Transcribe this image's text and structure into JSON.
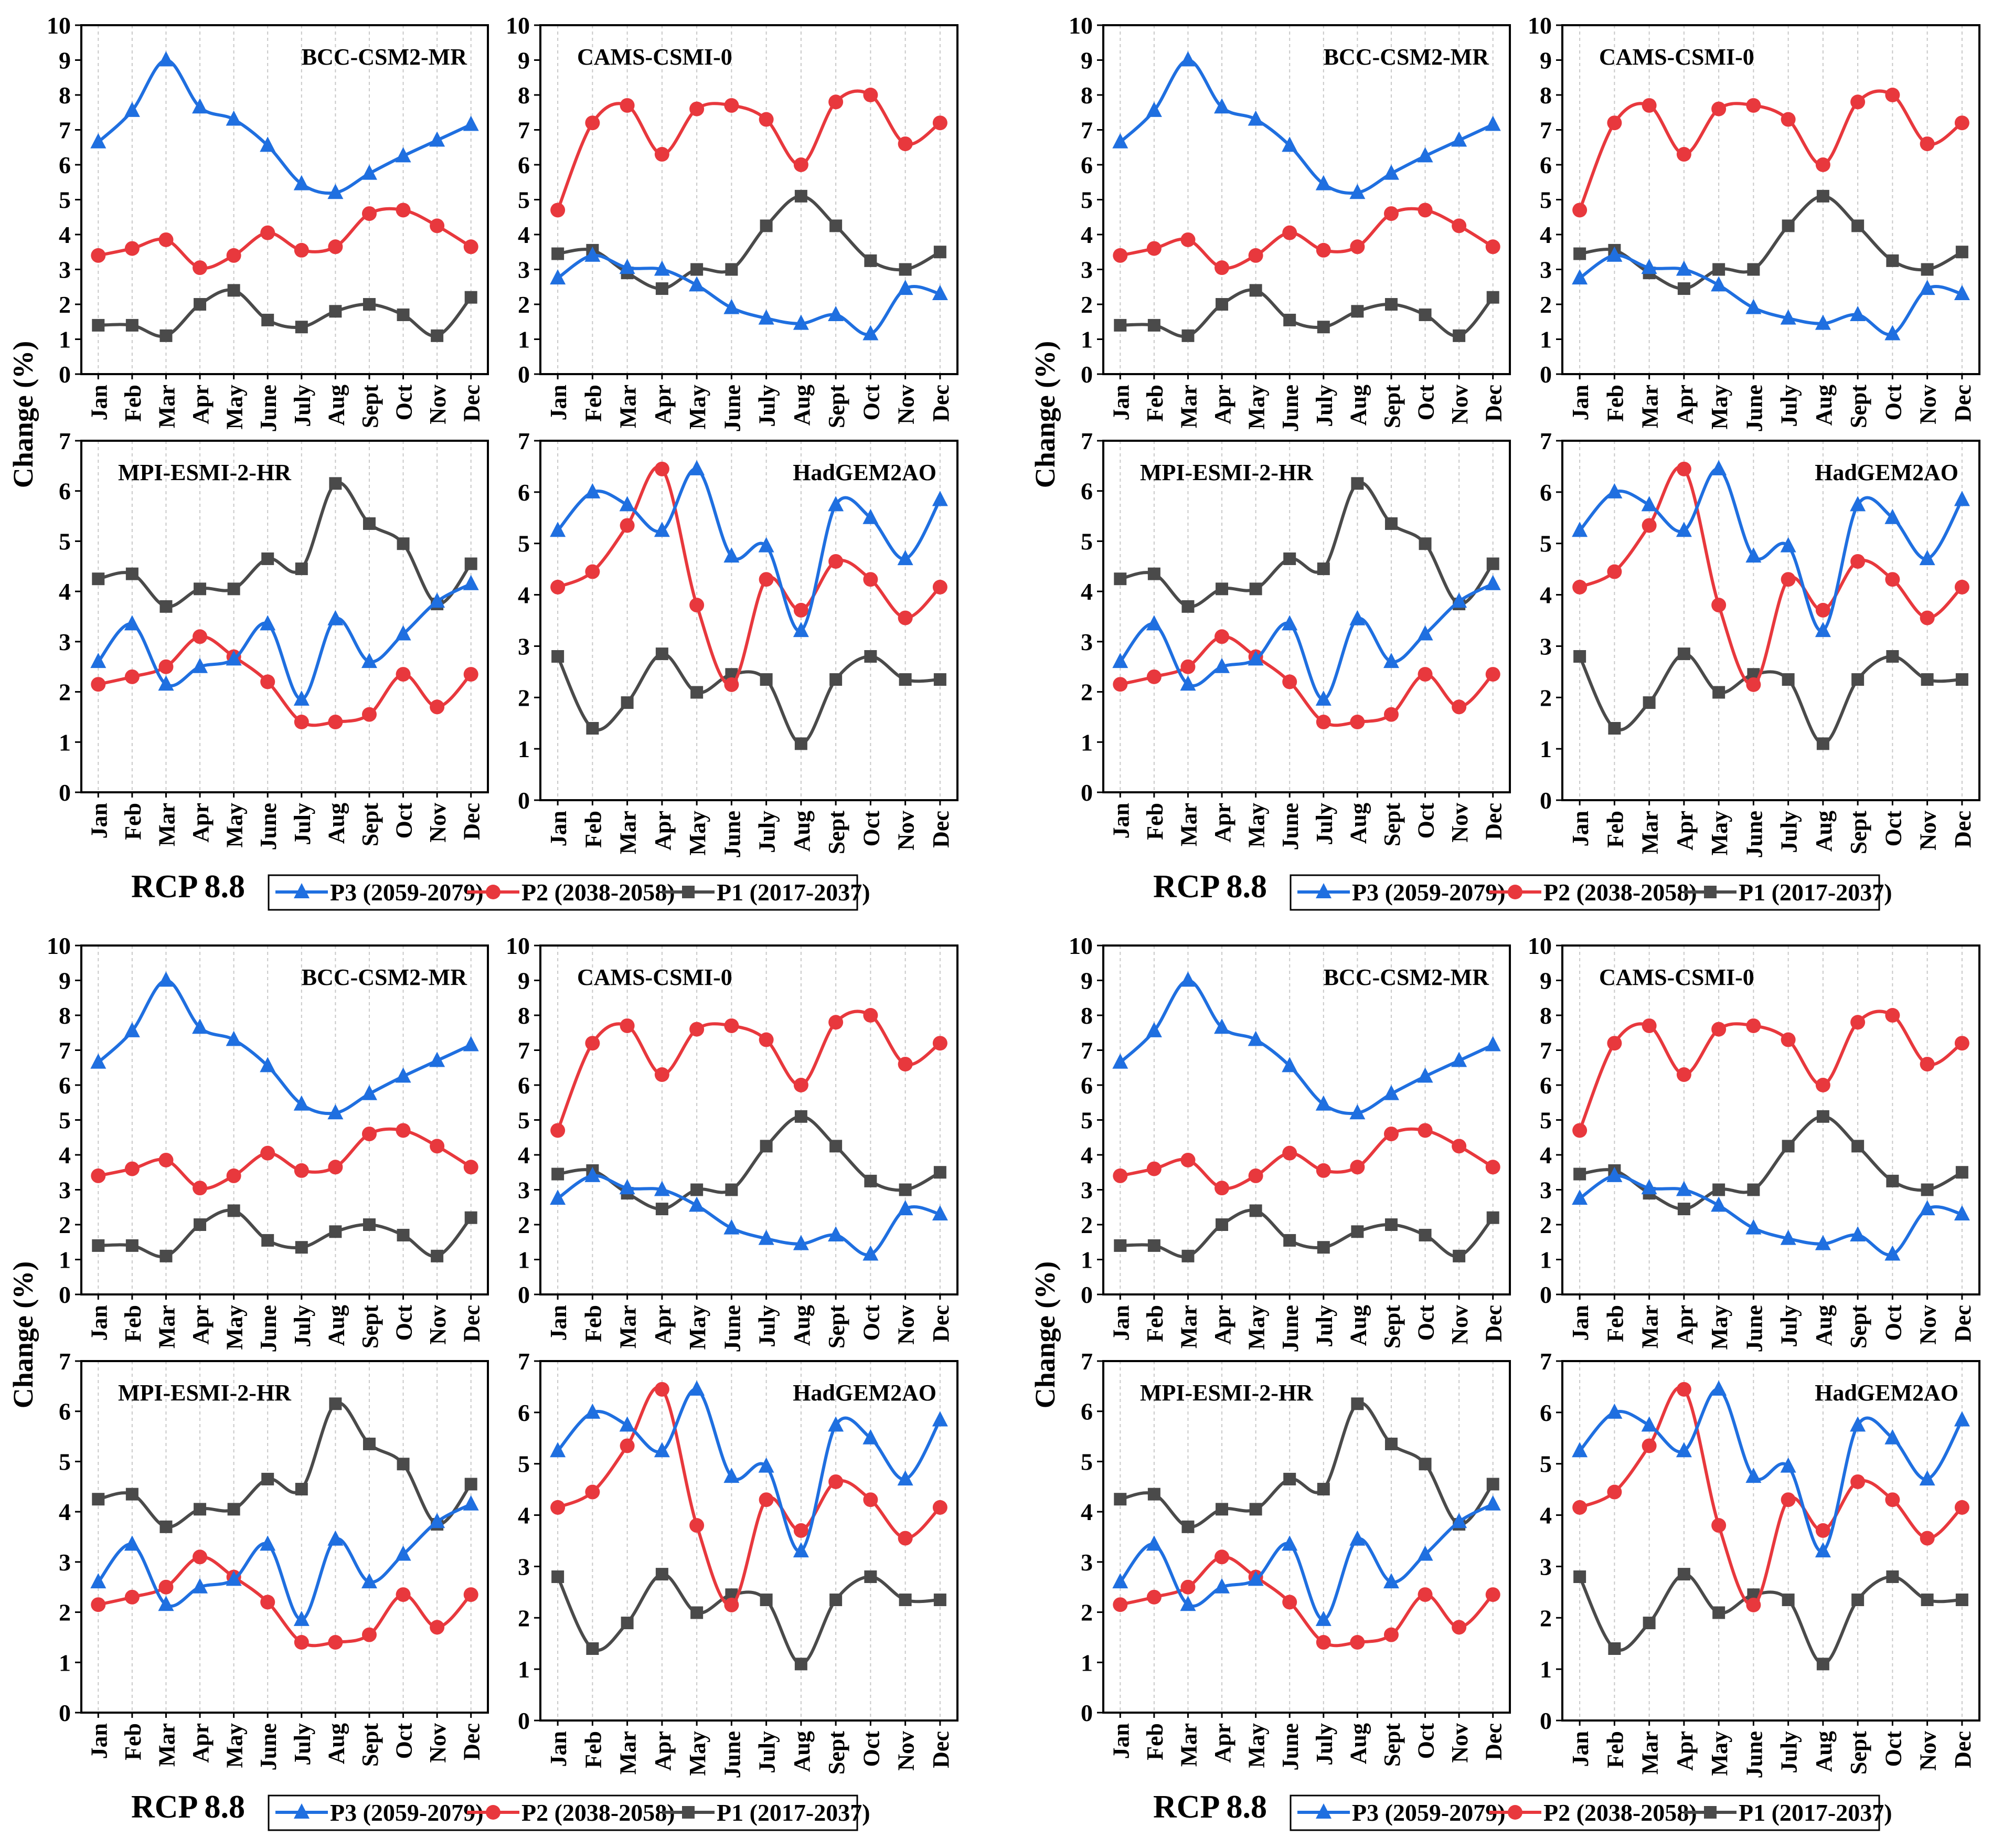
{
  "figure": {
    "ylabel": "Change (%)",
    "scenario_label": "RCP 8.8",
    "legend": [
      "P3 (2059-2079)",
      "P2 (2038-2058)",
      "P1 (2017-2037)"
    ],
    "colors": {
      "P3": "#1F6FE0",
      "P2": "#E8383D",
      "P1": "#4A4A4A"
    },
    "markers": {
      "P3": "triangle",
      "P2": "circle",
      "P1": "square"
    }
  },
  "chart_data": [
    {
      "type": "line",
      "title": "BCC-CSM2-MR",
      "ylabel": "Change (%)",
      "ylim": [
        0,
        10
      ],
      "yticks": [
        0,
        1,
        2,
        3,
        4,
        5,
        6,
        7,
        8,
        9,
        10
      ],
      "categories": [
        "Jan",
        "Feb",
        "Mar",
        "Apr",
        "May",
        "June",
        "July",
        "Aug",
        "Sept",
        "Oct",
        "Nov",
        "Dec"
      ],
      "series": [
        {
          "name": "P3 (2059-2079)",
          "values": [
            6.65,
            7.55,
            9.0,
            7.65,
            7.3,
            6.55,
            5.45,
            5.2,
            5.75,
            6.25,
            6.7,
            7.15
          ]
        },
        {
          "name": "P2 (2038-2058)",
          "values": [
            3.4,
            3.6,
            3.85,
            3.05,
            3.4,
            4.05,
            3.55,
            3.65,
            4.6,
            4.7,
            4.25,
            3.65
          ]
        },
        {
          "name": "P1 (2017-2037)",
          "values": [
            1.4,
            1.4,
            1.1,
            2.0,
            2.4,
            1.55,
            1.35,
            1.8,
            2.0,
            1.7,
            1.1,
            2.2
          ]
        }
      ]
    },
    {
      "type": "line",
      "title": "CAMS-CSMI-0",
      "ylabel": "",
      "ylim": [
        0,
        10
      ],
      "yticks": [
        0,
        1,
        2,
        3,
        4,
        5,
        6,
        7,
        8,
        9,
        10
      ],
      "categories": [
        "Jan",
        "Feb",
        "Mar",
        "Apr",
        "May",
        "June",
        "July",
        "Aug",
        "Sept",
        "Oct",
        "Nov",
        "Dec"
      ],
      "series": [
        {
          "name": "P3 (2059-2079)",
          "values": [
            2.75,
            3.4,
            3.05,
            3.0,
            2.55,
            1.9,
            1.6,
            1.45,
            1.7,
            1.15,
            2.45,
            2.3
          ]
        },
        {
          "name": "P2 (2038-2058)",
          "values": [
            4.7,
            7.2,
            7.7,
            6.3,
            7.6,
            7.7,
            7.3,
            6.0,
            7.8,
            8.0,
            6.6,
            7.2
          ]
        },
        {
          "name": "P1 (2017-2037)",
          "values": [
            3.45,
            3.55,
            2.9,
            2.45,
            3.0,
            3.0,
            4.25,
            5.1,
            4.25,
            3.25,
            3.0,
            3.5
          ]
        }
      ]
    },
    {
      "type": "line",
      "title": "MPI-ESMI-2-HR",
      "ylabel": "",
      "ylim": [
        0,
        7
      ],
      "yticks": [
        0,
        1,
        2,
        3,
        4,
        5,
        6,
        7
      ],
      "categories": [
        "Jan",
        "Feb",
        "Mar",
        "Apr",
        "May",
        "June",
        "July",
        "Aug",
        "Sept",
        "Oct",
        "Nov",
        "Dec"
      ],
      "series": [
        {
          "name": "P3 (2059-2079)",
          "values": [
            2.6,
            3.35,
            2.15,
            2.5,
            2.65,
            3.35,
            1.85,
            3.45,
            2.6,
            3.15,
            3.8,
            4.15
          ]
        },
        {
          "name": "P2 (2038-2058)",
          "values": [
            2.15,
            2.3,
            2.5,
            3.1,
            2.7,
            2.2,
            1.4,
            1.4,
            1.55,
            2.35,
            1.7,
            2.35
          ]
        },
        {
          "name": "P1 (2017-2037)",
          "values": [
            4.25,
            4.35,
            3.7,
            4.05,
            4.05,
            4.65,
            4.45,
            6.15,
            5.35,
            4.95,
            3.75,
            4.55
          ]
        }
      ]
    },
    {
      "type": "line",
      "title": "HadGEM2AO",
      "ylabel": "",
      "ylim": [
        0,
        7
      ],
      "yticks": [
        0,
        1,
        2,
        3,
        4,
        5,
        6,
        7
      ],
      "categories": [
        "Jan",
        "Feb",
        "Mar",
        "Apr",
        "May",
        "June",
        "July",
        "Aug",
        "Sept",
        "Oct",
        "Nov",
        "Dec"
      ],
      "series": [
        {
          "name": "P3 (2059-2079)",
          "values": [
            5.25,
            6.0,
            5.75,
            5.25,
            6.45,
            4.75,
            4.95,
            3.3,
            5.75,
            5.5,
            4.7,
            5.85
          ]
        },
        {
          "name": "P2 (2038-2058)",
          "values": [
            4.15,
            4.45,
            5.35,
            6.45,
            3.8,
            2.25,
            4.3,
            3.7,
            4.65,
            4.3,
            3.55,
            4.15
          ]
        },
        {
          "name": "P1 (2017-2037)",
          "values": [
            2.8,
            1.4,
            1.9,
            2.85,
            2.1,
            2.45,
            2.35,
            1.1,
            2.35,
            2.8,
            2.35,
            2.35
          ]
        }
      ]
    }
  ]
}
